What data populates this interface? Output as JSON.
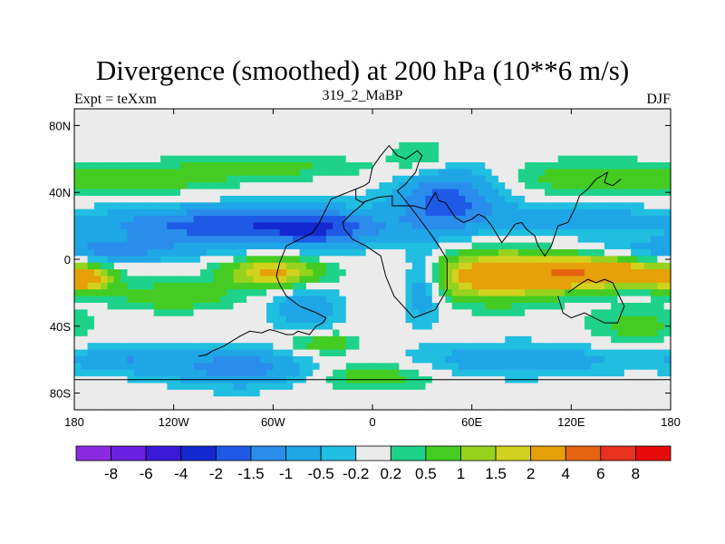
{
  "chart_data": {
    "type": "heatmap",
    "title": "Divergence (smoothed) at 200 hPa (10**6 m/s)",
    "subtitle_left": "Expt = teXxm",
    "subtitle_center": "319_2_MaBP",
    "subtitle_right": "DJF",
    "xlim": [
      -180,
      180
    ],
    "ylim": [
      -90,
      90
    ],
    "x_ticks": [
      {
        "value": -180,
        "label": "180"
      },
      {
        "value": -120,
        "label": "120W"
      },
      {
        "value": -60,
        "label": "60W"
      },
      {
        "value": 0,
        "label": "0"
      },
      {
        "value": 60,
        "label": "60E"
      },
      {
        "value": 120,
        "label": "120E"
      },
      {
        "value": 180,
        "label": "180"
      }
    ],
    "y_ticks": [
      {
        "value": 80,
        "label": "80N"
      },
      {
        "value": 40,
        "label": "40N"
      },
      {
        "value": 0,
        "label": "0"
      },
      {
        "value": -40,
        "label": "40S"
      },
      {
        "value": -80,
        "label": "80S"
      }
    ],
    "colorbar_levels": [
      "-8",
      "-6",
      "-4",
      "-2",
      "-1.5",
      "-1",
      "-0.5",
      "-0.2",
      "0.2",
      "0.5",
      "1",
      "1.5",
      "2",
      "4",
      "6",
      "8"
    ],
    "colorbar_colors": [
      "#8A2BE2",
      "#6A20E0",
      "#3A1AD8",
      "#1428D0",
      "#1E5AE6",
      "#2A8CEB",
      "#1EA6E6",
      "#20BEE0",
      "#EBEBEB",
      "#1ED28C",
      "#44CC22",
      "#96D21E",
      "#D2D21E",
      "#E6A00A",
      "#E66410",
      "#E6321E",
      "#E60A0A"
    ],
    "fields": [
      {
        "lon": -140,
        "lat": 48,
        "slon": 38,
        "slat": 6,
        "value": 0.8
      },
      {
        "lon": -60,
        "lat": 55,
        "slon": 40,
        "slat": 5,
        "value": 0.6
      },
      {
        "lon": 130,
        "lat": 48,
        "slon": 40,
        "slat": 8,
        "value": 0.7
      },
      {
        "lon": 30,
        "lat": 60,
        "slon": 15,
        "slat": 8,
        "value": 0.6
      },
      {
        "lon": -90,
        "lat": 20,
        "slon": 55,
        "slat": 8,
        "value": -1.8
      },
      {
        "lon": -30,
        "lat": 18,
        "slon": 25,
        "slat": 8,
        "value": -1.2
      },
      {
        "lon": 45,
        "lat": 35,
        "slon": 22,
        "slat": 14,
        "value": -1.8
      },
      {
        "lon": 120,
        "lat": 25,
        "slon": 30,
        "slat": 7,
        "value": -0.9
      },
      {
        "lon": -160,
        "lat": 5,
        "slon": 40,
        "slat": 5,
        "value": -1.0
      },
      {
        "lon": -60,
        "lat": -8,
        "slon": 20,
        "slat": 6,
        "value": 2.2
      },
      {
        "lon": -175,
        "lat": -12,
        "slon": 12,
        "slat": 5,
        "value": 2.5
      },
      {
        "lon": 75,
        "lat": -10,
        "slon": 28,
        "slat": 10,
        "value": 2.6
      },
      {
        "lon": 130,
        "lat": -8,
        "slon": 30,
        "slat": 6,
        "value": 3.6
      },
      {
        "lon": -120,
        "lat": -22,
        "slon": 25,
        "slat": 6,
        "value": 0.9
      },
      {
        "lon": 30,
        "lat": -15,
        "slon": 8,
        "slat": 14,
        "value": -1.2
      },
      {
        "lon": -40,
        "lat": -30,
        "slon": 15,
        "slat": 10,
        "value": -0.9
      },
      {
        "lon": -80,
        "lat": -65,
        "slon": 30,
        "slat": 8,
        "value": -1.3
      },
      {
        "lon": -150,
        "lat": -60,
        "slon": 25,
        "slat": 6,
        "value": -0.9
      },
      {
        "lon": 90,
        "lat": -60,
        "slon": 45,
        "slat": 7,
        "value": -0.9
      },
      {
        "lon": 0,
        "lat": -70,
        "slon": 25,
        "slat": 6,
        "value": 0.8
      },
      {
        "lon": -30,
        "lat": -50,
        "slon": 15,
        "slat": 5,
        "value": 0.9
      },
      {
        "lon": 160,
        "lat": -40,
        "slon": 20,
        "slat": 8,
        "value": 0.7
      }
    ],
    "coastlines": [
      [
        [
          -105,
          -58
        ],
        [
          -100,
          -57
        ],
        [
          -97,
          -55
        ],
        [
          -90,
          -52
        ],
        [
          -85,
          -49
        ],
        [
          -80,
          -46
        ],
        [
          -74,
          -43
        ],
        [
          -67,
          -44
        ],
        [
          -62,
          -42
        ],
        [
          -58,
          -43
        ],
        [
          -52,
          -45
        ],
        [
          -48,
          -45
        ],
        [
          -45,
          -43
        ],
        [
          -38,
          -45
        ],
        [
          -34,
          -40
        ],
        [
          -30,
          -38
        ],
        [
          -28,
          -35
        ],
        [
          -34,
          -32
        ],
        [
          -44,
          -28
        ],
        [
          -52,
          -22
        ],
        [
          -56,
          -15
        ],
        [
          -58,
          -10
        ],
        [
          -56,
          -2
        ],
        [
          -52,
          8
        ],
        [
          -44,
          12
        ],
        [
          -36,
          16
        ],
        [
          -32,
          22
        ],
        [
          -28,
          30
        ],
        [
          -25,
          36
        ],
        [
          -20,
          38
        ],
        [
          -15,
          40
        ],
        [
          -10,
          42
        ],
        [
          -5,
          44
        ],
        [
          -2,
          46
        ],
        [
          0,
          55
        ],
        [
          5,
          62
        ],
        [
          10,
          68
        ],
        [
          15,
          62
        ],
        [
          20,
          60
        ],
        [
          23,
          62
        ],
        [
          27,
          65
        ],
        [
          30,
          62
        ],
        [
          28,
          58
        ],
        [
          26,
          52
        ],
        [
          20,
          45
        ],
        [
          15,
          41
        ],
        [
          20,
          35
        ],
        [
          27,
          26
        ],
        [
          33,
          18
        ],
        [
          36,
          14
        ],
        [
          40,
          8
        ],
        [
          45,
          0
        ],
        [
          45,
          -18
        ],
        [
          38,
          -30
        ],
        [
          25,
          -35
        ],
        [
          13,
          -22
        ],
        [
          8,
          -10
        ],
        [
          5,
          2
        ],
        [
          -4,
          8
        ],
        [
          -12,
          12
        ],
        [
          -17,
          18
        ],
        [
          -18,
          22
        ],
        [
          -12,
          28
        ],
        [
          -7,
          32
        ],
        [
          -4,
          35
        ]
      ],
      [
        [
          -10,
          42
        ],
        [
          -10,
          36
        ],
        [
          -6,
          34
        ],
        [
          3,
          37
        ],
        [
          12,
          38
        ],
        [
          12,
          32
        ],
        [
          20,
          32
        ],
        [
          25,
          32
        ],
        [
          32,
          30
        ],
        [
          35,
          35
        ],
        [
          38,
          40
        ],
        [
          40,
          35
        ],
        [
          44,
          34
        ],
        [
          50,
          25
        ],
        [
          55,
          22
        ],
        [
          60,
          24
        ],
        [
          64,
          27
        ],
        [
          68,
          25
        ],
        [
          72,
          20
        ],
        [
          78,
          10
        ],
        [
          82,
          15
        ],
        [
          86,
          21
        ],
        [
          90,
          22
        ],
        [
          93,
          18
        ],
        [
          98,
          14
        ],
        [
          100,
          8
        ],
        [
          104,
          2
        ],
        [
          108,
          8
        ],
        [
          112,
          20
        ],
        [
          118,
          22
        ],
        [
          122,
          30
        ],
        [
          125,
          38
        ],
        [
          130,
          42
        ],
        [
          135,
          48
        ],
        [
          142,
          52
        ],
        [
          140,
          46
        ],
        [
          145,
          44
        ],
        [
          150,
          48
        ]
      ],
      [
        [
          112,
          -22
        ],
        [
          115,
          -32
        ],
        [
          120,
          -35
        ],
        [
          128,
          -32
        ],
        [
          134,
          -35
        ],
        [
          140,
          -38
        ],
        [
          148,
          -38
        ],
        [
          152,
          -28
        ],
        [
          148,
          -20
        ],
        [
          145,
          -14
        ],
        [
          140,
          -12
        ],
        [
          135,
          -14
        ],
        [
          130,
          -12
        ],
        [
          125,
          -15
        ],
        [
          118,
          -20
        ]
      ],
      [
        [
          -180,
          -72
        ],
        [
          -150,
          -72
        ],
        [
          -120,
          -72
        ],
        [
          -90,
          -72
        ],
        [
          -60,
          -72
        ],
        [
          -30,
          -72
        ],
        [
          0,
          -72
        ],
        [
          30,
          -72
        ],
        [
          60,
          -72
        ],
        [
          90,
          -72
        ],
        [
          120,
          -72
        ],
        [
          150,
          -72
        ],
        [
          180,
          -72
        ]
      ]
    ]
  }
}
